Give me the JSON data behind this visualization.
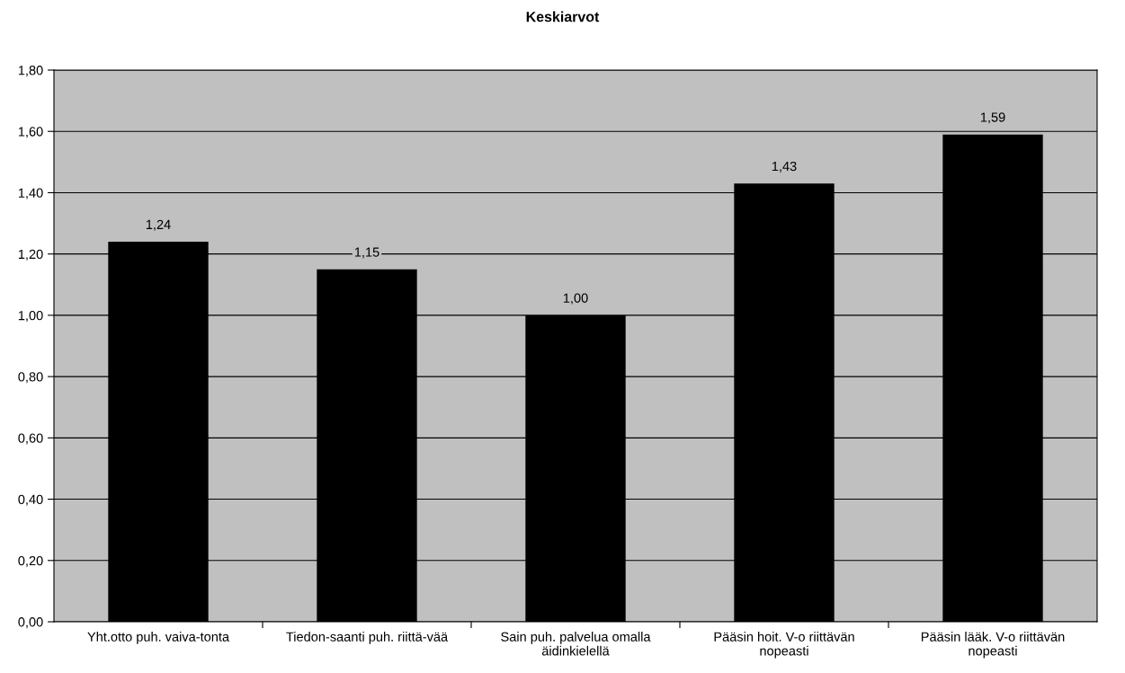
{
  "chart_data": {
    "type": "bar",
    "title": "Keskiarvot",
    "categories": [
      "Yht.otto puh. vaiva-tonta",
      "Tiedon-saanti puh. riittä-vää",
      "Sain puh. palvelua omalla äidinkielellä",
      "Pääsin hoit. V-o riittävän nopeasti",
      "Pääsin lääk. V-o riittävän nopeasti"
    ],
    "values": [
      1.24,
      1.15,
      1.0,
      1.43,
      1.59
    ],
    "value_labels": [
      "1,24",
      "1,15",
      "1,00",
      "1,43",
      "1,59"
    ],
    "color": "#000000",
    "ylim": [
      0,
      1.8
    ],
    "yticks": [
      {
        "value": 0,
        "label": "0,00"
      },
      {
        "value": 0.2,
        "label": "0,20"
      },
      {
        "value": 0.4,
        "label": "0,40"
      },
      {
        "value": 0.6,
        "label": "0,60"
      },
      {
        "value": 0.8,
        "label": "0,80"
      },
      {
        "value": 1.0,
        "label": "1,00"
      },
      {
        "value": 1.2,
        "label": "1,20"
      },
      {
        "value": 1.4,
        "label": "1,40"
      },
      {
        "value": 1.6,
        "label": "1,60"
      },
      {
        "value": 1.8,
        "label": "1,80"
      }
    ],
    "grid": "y"
  }
}
